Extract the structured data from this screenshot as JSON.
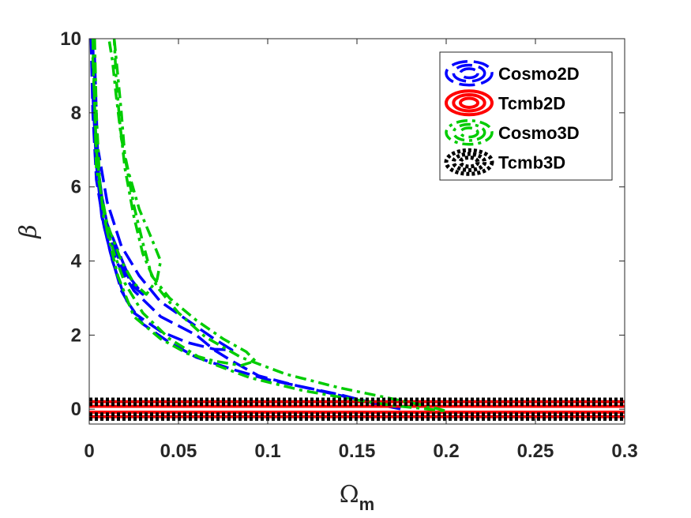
{
  "chart_data": {
    "type": "line",
    "title": "",
    "xlabel": "Ω",
    "xlabel_sub": "m",
    "ylabel": "β",
    "xlim": [
      0,
      0.3
    ],
    "ylim": [
      -0.4,
      10
    ],
    "xticks": [
      0,
      0.05,
      0.1,
      0.15,
      0.2,
      0.25,
      0.3
    ],
    "xtick_labels": [
      "0",
      "0.05",
      "0.1",
      "0.15",
      "0.2",
      "0.25",
      "0.3"
    ],
    "yticks": [
      0,
      2,
      4,
      6,
      8,
      10
    ],
    "ytick_labels": [
      "0",
      "2",
      "4",
      "6",
      "8",
      "10"
    ],
    "grid": false,
    "legend_position": "top-right",
    "series": [
      {
        "name": "Cosmo2D",
        "color": "#0000ff",
        "style": "dashed",
        "contours": [
          [
            [
              0.002,
              10
            ],
            [
              0.003,
              8
            ],
            [
              0.004,
              7
            ],
            [
              0.006,
              6
            ],
            [
              0.01,
              5
            ],
            [
              0.016,
              4.3
            ],
            [
              0.022,
              3.6
            ],
            [
              0.03,
              3.1
            ],
            [
              0.025,
              3.3
            ],
            [
              0.018,
              3.9
            ],
            [
              0.012,
              4.6
            ],
            [
              0.008,
              5.4
            ],
            [
              0.005,
              6.5
            ],
            [
              0.004,
              8
            ],
            [
              0.003,
              9.5
            ]
          ],
          [
            [
              0.001,
              10
            ],
            [
              0.002,
              8
            ],
            [
              0.004,
              6.2
            ],
            [
              0.008,
              5
            ],
            [
              0.013,
              4
            ],
            [
              0.02,
              3
            ],
            [
              0.03,
              2.3
            ],
            [
              0.045,
              1.8
            ],
            [
              0.06,
              1.4
            ],
            [
              0.08,
              1.08
            ],
            [
              0.1,
              0.8
            ],
            [
              0.12,
              0.6
            ],
            [
              0.14,
              0.4
            ],
            [
              0.16,
              0.15
            ],
            [
              0.17,
              0.05
            ],
            [
              0.175,
              0
            ],
            [
              0.155,
              0.22
            ],
            [
              0.135,
              0.43
            ],
            [
              0.115,
              0.65
            ],
            [
              0.095,
              0.9
            ],
            [
              0.08,
              1.3
            ],
            [
              0.07,
              1.6
            ],
            [
              0.06,
              2
            ],
            [
              0.04,
              2.5
            ],
            [
              0.025,
              3.2
            ],
            [
              0.015,
              4
            ],
            [
              0.01,
              5
            ],
            [
              0.006,
              6
            ],
            [
              0.004,
              7.5
            ],
            [
              0.003,
              9
            ]
          ],
          [
            [
              0.002,
              8.5
            ],
            [
              0.004,
              6.6
            ],
            [
              0.007,
              5.2
            ],
            [
              0.012,
              4.2
            ],
            [
              0.018,
              3.2
            ],
            [
              0.025,
              2.6
            ],
            [
              0.04,
              2.1
            ],
            [
              0.055,
              1.8
            ],
            [
              0.07,
              1.62
            ],
            [
              0.08,
              1.6
            ],
            [
              0.07,
              1.9
            ],
            [
              0.055,
              2.4
            ],
            [
              0.04,
              2.9
            ],
            [
              0.028,
              3.6
            ],
            [
              0.018,
              4.4
            ],
            [
              0.01,
              5.6
            ],
            [
              0.005,
              7
            ]
          ]
        ]
      },
      {
        "name": "Tcmb2D",
        "color": "#ff0000",
        "style": "solid",
        "contours": [
          [
            [
              0,
              0.08
            ],
            [
              0.3,
              0.08
            ]
          ],
          [
            [
              0,
              -0.08
            ],
            [
              0.3,
              -0.08
            ]
          ],
          [
            [
              0,
              0.2
            ],
            [
              0.3,
              0.2
            ]
          ],
          [
            [
              0,
              -0.2
            ],
            [
              0.3,
              -0.2
            ]
          ]
        ]
      },
      {
        "name": "Cosmo3D",
        "color": "#00cc00",
        "style": "dashdot",
        "contours": [
          [
            [
              0.002,
              10
            ],
            [
              0.004,
              6.5
            ],
            [
              0.01,
              5
            ],
            [
              0.018,
              4
            ],
            [
              0.025,
              3.4
            ],
            [
              0.032,
              3.1
            ],
            [
              0.038,
              3.5
            ],
            [
              0.04,
              4
            ],
            [
              0.035,
              4.6
            ],
            [
              0.028,
              5.4
            ],
            [
              0.022,
              6.4
            ],
            [
              0.018,
              7.3
            ],
            [
              0.015,
              8.5
            ],
            [
              0.013,
              9.4
            ],
            [
              0.011,
              10
            ]
          ],
          [
            [
              0.003,
              10
            ],
            [
              0.004,
              8
            ],
            [
              0.006,
              6
            ],
            [
              0.01,
              4.8
            ],
            [
              0.016,
              3.6
            ],
            [
              0.025,
              2.5
            ],
            [
              0.04,
              1.9
            ],
            [
              0.055,
              1.5
            ],
            [
              0.07,
              1.3
            ],
            [
              0.085,
              1.18
            ],
            [
              0.093,
              1.3
            ],
            [
              0.088,
              1.55
            ],
            [
              0.075,
              1.9
            ],
            [
              0.06,
              2.4
            ],
            [
              0.045,
              3
            ],
            [
              0.035,
              3.6
            ],
            [
              0.03,
              4.5
            ],
            [
              0.025,
              5.5
            ],
            [
              0.02,
              6.8
            ],
            [
              0.018,
              8
            ],
            [
              0.016,
              9
            ],
            [
              0.014,
              10
            ]
          ],
          [
            [
              0.002,
              9.5
            ],
            [
              0.004,
              7
            ],
            [
              0.008,
              5.2
            ],
            [
              0.014,
              4.2
            ],
            [
              0.02,
              3.4
            ],
            [
              0.03,
              2.6
            ],
            [
              0.045,
              1.9
            ],
            [
              0.065,
              1.3
            ],
            [
              0.09,
              0.85
            ],
            [
              0.12,
              0.5
            ],
            [
              0.15,
              0.25
            ],
            [
              0.17,
              0.1
            ],
            [
              0.19,
              0
            ],
            [
              0.2,
              -0.05
            ],
            [
              0.19,
              0.08
            ],
            [
              0.17,
              0.28
            ],
            [
              0.14,
              0.58
            ],
            [
              0.11,
              0.95
            ],
            [
              0.085,
              1.4
            ],
            [
              0.065,
              1.95
            ],
            [
              0.05,
              2.6
            ],
            [
              0.038,
              3.3
            ],
            [
              0.03,
              4.2
            ],
            [
              0.025,
              5.2
            ],
            [
              0.02,
              6.5
            ],
            [
              0.017,
              7.8
            ],
            [
              0.015,
              9
            ],
            [
              0.014,
              10
            ]
          ]
        ]
      },
      {
        "name": "Tcmb3D",
        "color": "#000000",
        "style": "dotted",
        "contours": [
          [
            [
              0,
              0.26
            ],
            [
              0.3,
              0.26
            ]
          ],
          [
            [
              0,
              -0.26
            ],
            [
              0.3,
              -0.26
            ]
          ],
          [
            [
              0,
              0.14
            ],
            [
              0.3,
              0.14
            ]
          ],
          [
            [
              0,
              -0.14
            ],
            [
              0.3,
              -0.14
            ]
          ]
        ]
      }
    ]
  }
}
